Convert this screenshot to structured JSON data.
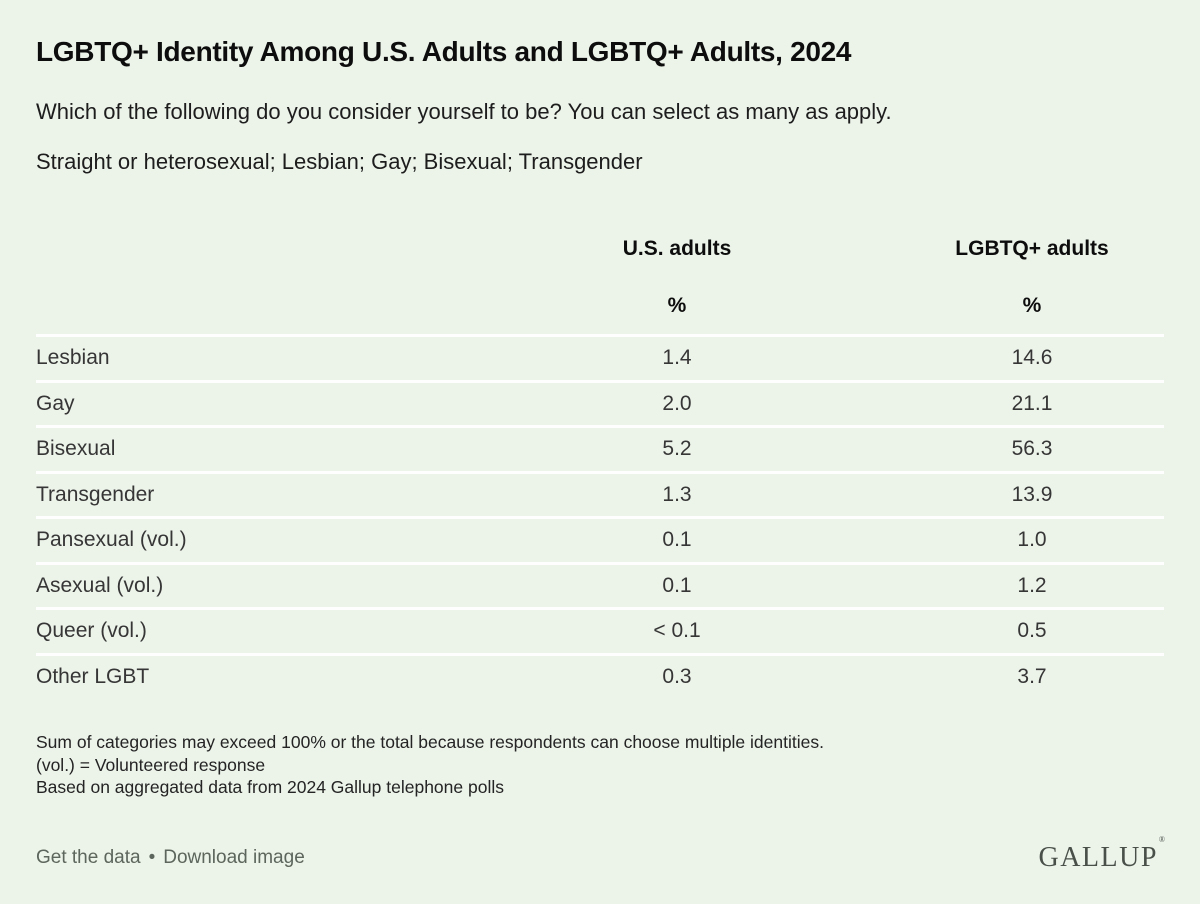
{
  "page": {
    "background_color": "#ecf3e9",
    "title": "LGBTQ+ Identity Among U.S. Adults and LGBTQ+ Adults, 2024",
    "subtitle_line1": "Which of the following do you consider yourself to be? You can select as many as apply.",
    "subtitle_line2": "Straight or heterosexual; Lesbian; Gay; Bisexual; Transgender"
  },
  "chart_data": {
    "type": "table",
    "title": "LGBTQ+ Identity Among U.S. Adults and LGBTQ+ Adults, 2024",
    "columns": [
      "",
      "U.S. adults",
      "LGBTQ+ adults"
    ],
    "unit": "%",
    "categories": [
      "Lesbian",
      "Gay",
      "Bisexual",
      "Transgender",
      "Pansexual (vol.)",
      "Asexual (vol.)",
      "Queer (vol.)",
      "Other LGBT"
    ],
    "series": [
      {
        "name": "U.S. adults",
        "values": [
          "1.4",
          "2.0",
          "5.2",
          "1.3",
          "0.1",
          "0.1",
          "< 0.1",
          "0.3"
        ]
      },
      {
        "name": "LGBTQ+ adults",
        "values": [
          "14.6",
          "21.1",
          "56.3",
          "13.9",
          "1.0",
          "1.2",
          "0.5",
          "3.7"
        ]
      }
    ]
  },
  "table": {
    "col1_header": "U.S. adults",
    "col2_header": "LGBTQ+ adults",
    "pct1": "%",
    "pct2": "%",
    "rows": [
      {
        "label": "Lesbian",
        "us": "1.4",
        "lgbtq": "14.6"
      },
      {
        "label": "Gay",
        "us": "2.0",
        "lgbtq": "21.1"
      },
      {
        "label": "Bisexual",
        "us": "5.2",
        "lgbtq": "56.3"
      },
      {
        "label": "Transgender",
        "us": "1.3",
        "lgbtq": "13.9"
      },
      {
        "label": "Pansexual (vol.)",
        "us": "0.1",
        "lgbtq": "1.0"
      },
      {
        "label": "Asexual (vol.)",
        "us": "0.1",
        "lgbtq": "1.2"
      },
      {
        "label": "Queer (vol.)",
        "us": "< 0.1",
        "lgbtq": "0.5"
      },
      {
        "label": "Other LGBT",
        "us": "0.3",
        "lgbtq": "3.7"
      }
    ]
  },
  "footnotes": {
    "line1": "Sum of categories may exceed 100% or the total because respondents can choose multiple identities.",
    "line2": "(vol.) = Volunteered response",
    "line3": "Based on aggregated data from 2024 Gallup telephone polls"
  },
  "footer": {
    "get_data_label": "Get the data",
    "separator": "•",
    "download_label": "Download image",
    "brand": "GALLUP",
    "brand_mark": "®"
  }
}
